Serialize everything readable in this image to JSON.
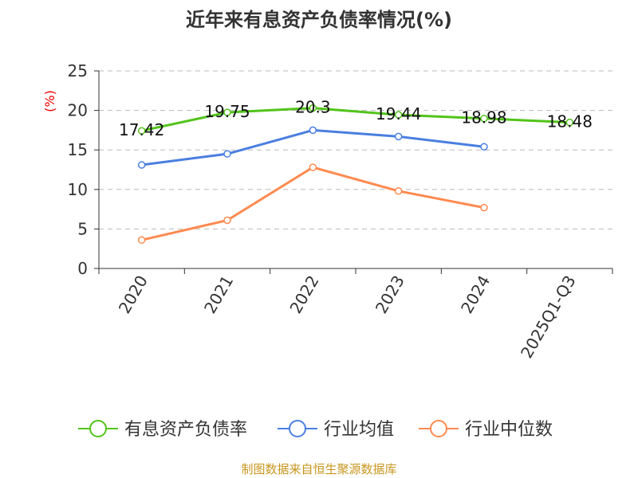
{
  "chart_data": {
    "type": "line",
    "title": "近年来有息资产负债率情况(%)",
    "ylabel": "(%)",
    "ylim": [
      0,
      25
    ],
    "yticks": [
      0,
      5,
      10,
      15,
      20,
      25
    ],
    "categories": [
      "2020",
      "2021",
      "2022",
      "2023",
      "2024",
      "2025Q1-Q3"
    ],
    "grid": true,
    "legend_position": "bottom",
    "series": [
      {
        "name": "有息资产负债率",
        "color": "#52c41a",
        "values": [
          17.42,
          19.75,
          20.3,
          19.44,
          18.98,
          18.48
        ],
        "labels": [
          "17.42",
          "19.75",
          "20.3",
          "19.44",
          "18.98",
          "18.48"
        ]
      },
      {
        "name": "行业均值",
        "color": "#4a7fe0",
        "values": [
          13.1,
          14.5,
          17.5,
          16.7,
          15.4,
          null
        ]
      },
      {
        "name": "行业中位数",
        "color": "#ff8a50",
        "values": [
          3.6,
          6.1,
          12.8,
          9.8,
          7.7,
          null
        ]
      }
    ]
  },
  "footer": "制图数据来自恒生聚源数据库"
}
